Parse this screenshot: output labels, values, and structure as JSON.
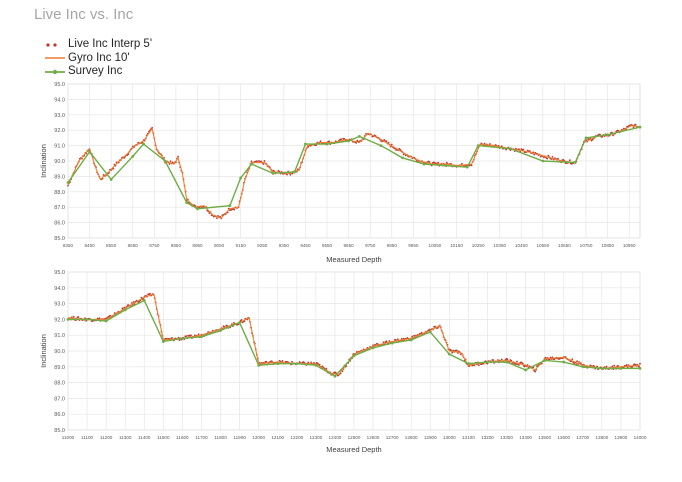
{
  "title": "Live Inc vs. Inc",
  "legend": [
    {
      "name": "Live Inc Interp 5'",
      "color": "#c0392b",
      "marker": "dot"
    },
    {
      "name": "Gyro Inc 10'",
      "color": "#ed7d31",
      "marker": "line"
    },
    {
      "name": "Survey Inc",
      "color": "#70ad47",
      "marker": "line-dot"
    }
  ],
  "chart_data": [
    {
      "type": "line",
      "xlabel": "Measured Depth",
      "ylabel": "Inclination",
      "xlim": [
        8350,
        11000
      ],
      "ylim": [
        85.0,
        95.0
      ],
      "yticks": [
        "85.0",
        "86.0",
        "87.0",
        "88.0",
        "89.0",
        "90.0",
        "91.0",
        "92.0",
        "93.0",
        "94.0",
        "95.0"
      ],
      "xticks": [
        "8350",
        "8450",
        "8550",
        "8650",
        "8750",
        "8850",
        "8950",
        "9050",
        "9150",
        "9250",
        "9350",
        "9450",
        "9550",
        "9650",
        "9750",
        "9850",
        "9950",
        "10050",
        "10150",
        "10250",
        "10350",
        "10450",
        "10550",
        "10650",
        "10750",
        "10850",
        "10950"
      ],
      "grid": true,
      "series": [
        {
          "name": "Survey Inc",
          "x": [
            8350,
            8450,
            8550,
            8650,
            8700,
            8800,
            8900,
            8950,
            9100,
            9150,
            9200,
            9300,
            9400,
            9450,
            9550,
            9650,
            9700,
            9800,
            9900,
            10000,
            10100,
            10200,
            10250,
            10400,
            10550,
            10700,
            10750,
            10850,
            11000
          ],
          "y": [
            88.6,
            90.6,
            88.8,
            90.3,
            91.1,
            90.0,
            87.3,
            86.9,
            87.1,
            88.9,
            89.8,
            89.2,
            89.3,
            91.1,
            91.1,
            91.3,
            91.6,
            91.0,
            90.2,
            89.8,
            89.7,
            89.6,
            91.0,
            90.8,
            90.0,
            89.9,
            91.5,
            91.7,
            92.2
          ]
        },
        {
          "name": "Gyro Inc 10'",
          "x": [
            8350,
            8400,
            8450,
            8480,
            8500,
            8540,
            8580,
            8620,
            8660,
            8700,
            8740,
            8760,
            8800,
            8840,
            8860,
            8880,
            8900,
            8940,
            8980,
            9020,
            9060,
            9100,
            9140,
            9170,
            9200,
            9260,
            9300,
            9380,
            9420,
            9460,
            9520,
            9580,
            9640,
            9700,
            9740,
            9800,
            9860,
            9920,
            9980,
            10040,
            10100,
            10160,
            10220,
            10260,
            10320,
            10400,
            10480,
            10560,
            10640,
            10700,
            10740,
            10800,
            10860,
            10920,
            10960,
            11000
          ],
          "y": [
            88.4,
            90.0,
            90.8,
            89.5,
            88.8,
            89.3,
            89.9,
            90.4,
            91.0,
            91.3,
            92.1,
            90.8,
            90.0,
            89.8,
            90.2,
            89.2,
            87.5,
            87.0,
            87.1,
            86.5,
            86.3,
            86.9,
            87.0,
            88.8,
            89.9,
            89.9,
            89.3,
            89.2,
            89.4,
            91.0,
            91.2,
            91.2,
            91.4,
            91.2,
            91.8,
            91.4,
            90.9,
            90.4,
            90.0,
            89.8,
            89.8,
            89.7,
            89.8,
            91.1,
            91.0,
            90.8,
            90.6,
            90.3,
            90.0,
            89.9,
            91.2,
            91.6,
            91.7,
            92.0,
            92.3,
            92.2
          ]
        }
      ]
    },
    {
      "type": "line",
      "xlabel": "Measured Depth",
      "ylabel": "Inclination",
      "xlim": [
        11000,
        14000
      ],
      "ylim": [
        85.0,
        95.0
      ],
      "yticks": [
        "85.0",
        "86.0",
        "87.0",
        "88.0",
        "89.0",
        "90.0",
        "91.0",
        "92.0",
        "93.0",
        "94.0",
        "95.0"
      ],
      "xticks": [
        "11000",
        "11100",
        "11200",
        "11300",
        "11400",
        "11500",
        "11600",
        "11700",
        "11800",
        "11900",
        "12000",
        "12100",
        "12200",
        "12300",
        "12400",
        "12500",
        "12600",
        "12700",
        "12800",
        "12900",
        "13000",
        "13100",
        "13200",
        "13300",
        "13400",
        "13500",
        "13600",
        "13700",
        "13800",
        "13900",
        "14000"
      ],
      "grid": true,
      "series": [
        {
          "name": "Survey Inc",
          "x": [
            11000,
            11100,
            11200,
            11300,
            11400,
            11500,
            11600,
            11700,
            11800,
            11900,
            12000,
            12100,
            12200,
            12300,
            12400,
            12500,
            12600,
            12700,
            12800,
            12900,
            13000,
            13100,
            13200,
            13300,
            13400,
            13500,
            13600,
            13700,
            13800,
            13900,
            14000
          ],
          "y": [
            92.0,
            92.0,
            91.9,
            92.6,
            93.2,
            90.6,
            90.8,
            90.9,
            91.3,
            91.8,
            89.1,
            89.2,
            89.2,
            89.1,
            88.4,
            89.7,
            90.2,
            90.5,
            90.7,
            91.2,
            89.8,
            89.2,
            89.3,
            89.3,
            88.8,
            89.4,
            89.3,
            89.0,
            88.9,
            88.9,
            88.9
          ]
        },
        {
          "name": "Gyro Inc 10'",
          "x": [
            11000,
            11100,
            11200,
            11300,
            11400,
            11450,
            11500,
            11600,
            11700,
            11800,
            11900,
            11950,
            12000,
            12100,
            12200,
            12300,
            12380,
            12420,
            12500,
            12600,
            12700,
            12800,
            12900,
            12950,
            13000,
            13060,
            13100,
            13200,
            13300,
            13400,
            13450,
            13500,
            13600,
            13700,
            13800,
            13900,
            14000
          ],
          "y": [
            92.1,
            92.0,
            92.0,
            92.7,
            93.4,
            93.6,
            90.7,
            90.8,
            91.0,
            91.4,
            91.8,
            92.1,
            89.2,
            89.3,
            89.2,
            89.2,
            88.6,
            88.5,
            89.8,
            90.3,
            90.6,
            90.8,
            91.3,
            91.6,
            90.0,
            89.9,
            89.1,
            89.3,
            89.4,
            89.1,
            88.8,
            89.5,
            89.6,
            89.1,
            88.9,
            89.0,
            89.1
          ]
        }
      ]
    }
  ]
}
